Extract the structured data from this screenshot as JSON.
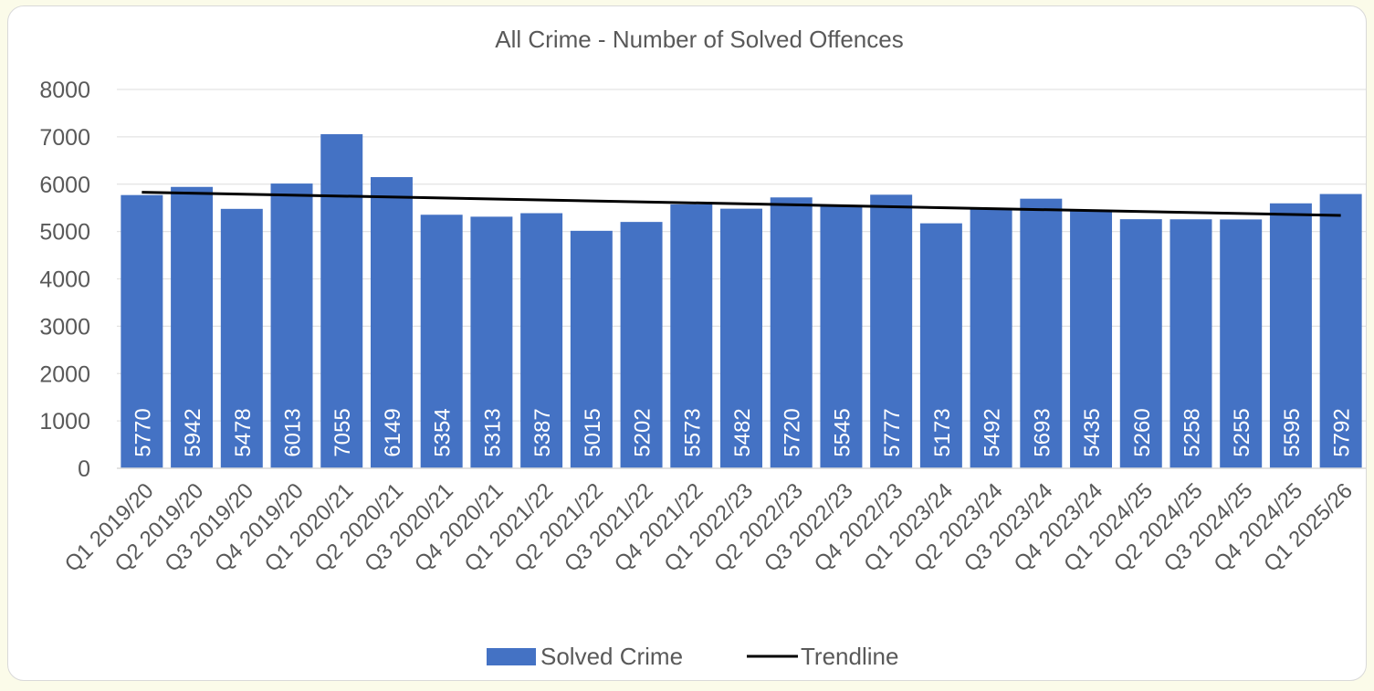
{
  "chart_data": {
    "type": "bar",
    "title": "All Crime - Number of Solved Offences",
    "categories": [
      "Q1 2019/20",
      "Q2 2019/20",
      "Q3 2019/20",
      "Q4 2019/20",
      "Q1 2020/21",
      "Q2 2020/21",
      "Q3 2020/21",
      "Q4 2020/21",
      "Q1 2021/22",
      "Q2 2021/22",
      "Q3 2021/22",
      "Q4 2021/22",
      "Q1 2022/23",
      "Q2 2022/23",
      "Q3 2022/23",
      "Q4 2022/23",
      "Q1 2023/24",
      "Q2 2023/24",
      "Q3 2023/24",
      "Q4 2023/24",
      "Q1 2024/25",
      "Q2 2024/25",
      "Q3 2024/25",
      "Q4 2024/25",
      "Q1 2025/26"
    ],
    "series": [
      {
        "name": "Solved Crime",
        "values": [
          5770,
          5942,
          5478,
          6013,
          7055,
          6149,
          5354,
          5313,
          5387,
          5015,
          5202,
          5573,
          5482,
          5720,
          5545,
          5777,
          5173,
          5492,
          5693,
          5435,
          5260,
          5258,
          5255,
          5595,
          5792
        ],
        "color": "#4472c4"
      },
      {
        "name": "Trendline",
        "type": "line",
        "start": 5830,
        "end": 5340,
        "color": "#000000"
      }
    ],
    "ylim": [
      0,
      8000
    ],
    "yticks": [
      0,
      1000,
      2000,
      3000,
      4000,
      5000,
      6000,
      7000,
      8000
    ],
    "grid": true,
    "legend": "bottom"
  }
}
